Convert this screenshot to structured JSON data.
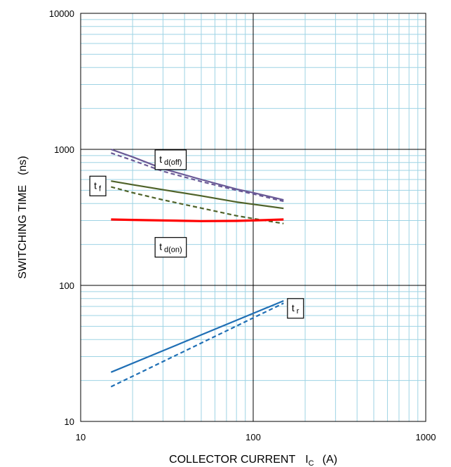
{
  "chart_data": {
    "type": "line",
    "title": "",
    "xlabel": {
      "main": "COLLECTOR CURRENT",
      "symbol": "I",
      "symbol_sub": "C",
      "unit": "(A)"
    },
    "ylabel": {
      "main": "SWITCHING TIME",
      "unit": "(ns)"
    },
    "xscale": "log",
    "yscale": "log",
    "xlim": [
      10,
      1000
    ],
    "ylim": [
      10,
      10000
    ],
    "x_ticks": [
      "10",
      "100",
      "1000"
    ],
    "y_ticks": [
      "10",
      "100",
      "1000",
      "10000"
    ],
    "grid": true,
    "series": [
      {
        "name": "t_d(off)",
        "style": "solid",
        "color": "#6a5a96",
        "points": [
          [
            15,
            1000
          ],
          [
            20,
            880
          ],
          [
            30,
            720
          ],
          [
            50,
            600
          ],
          [
            80,
            510
          ],
          [
            100,
            480
          ],
          [
            150,
            425
          ]
        ]
      },
      {
        "name": "t_d(off)",
        "style": "dashed",
        "color": "#6a5a96",
        "points": [
          [
            15,
            940
          ],
          [
            20,
            830
          ],
          [
            30,
            690
          ],
          [
            50,
            580
          ],
          [
            80,
            500
          ],
          [
            100,
            470
          ],
          [
            150,
            415
          ]
        ]
      },
      {
        "name": "t_f",
        "style": "solid",
        "color": "#4f6228",
        "points": [
          [
            15,
            585
          ],
          [
            20,
            550
          ],
          [
            30,
            505
          ],
          [
            50,
            455
          ],
          [
            80,
            410
          ],
          [
            100,
            395
          ],
          [
            150,
            368
          ]
        ]
      },
      {
        "name": "t_f",
        "style": "dashed",
        "color": "#4f6228",
        "points": [
          [
            15,
            530
          ],
          [
            20,
            480
          ],
          [
            30,
            425
          ],
          [
            50,
            370
          ],
          [
            80,
            325
          ],
          [
            100,
            310
          ],
          [
            150,
            285
          ]
        ]
      },
      {
        "name": "t_d(on)",
        "style": "solid",
        "color": "#ff0000",
        "points": [
          [
            15,
            305
          ],
          [
            20,
            303
          ],
          [
            30,
            300
          ],
          [
            50,
            297
          ],
          [
            80,
            298
          ],
          [
            100,
            300
          ],
          [
            150,
            305
          ]
        ]
      },
      {
        "name": "t_r",
        "style": "solid",
        "color": "#1f6fb5",
        "points": [
          [
            15,
            23
          ],
          [
            150,
            77
          ]
        ]
      },
      {
        "name": "t_r",
        "style": "dashed",
        "color": "#1f6fb5",
        "points": [
          [
            15,
            18
          ],
          [
            150,
            74
          ]
        ]
      }
    ],
    "annotations": [
      {
        "base": "t",
        "sub": "d(off)",
        "x": 27,
        "y": 990
      },
      {
        "base": "t",
        "sub": "f",
        "x": 11.3,
        "y": 635
      },
      {
        "base": "t",
        "sub": "d(on)",
        "x": 27,
        "y": 225
      },
      {
        "base": "t",
        "sub": "r",
        "x": 158,
        "y": 80
      }
    ]
  }
}
